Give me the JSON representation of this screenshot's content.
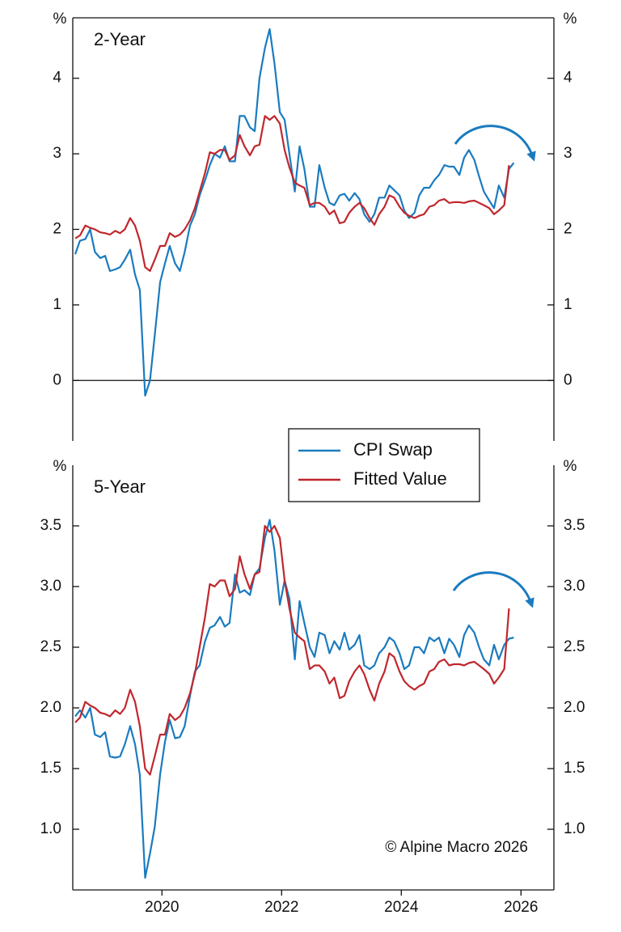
{
  "chart_data": [
    {
      "type": "line",
      "title": "2-Year",
      "ylabel": "%",
      "y2label": "%",
      "x": [
        2018.55,
        2018.63,
        2018.72,
        2018.8,
        2018.88,
        2018.97,
        2019.05,
        2019.13,
        2019.22,
        2019.3,
        2019.38,
        2019.47,
        2019.55,
        2019.63,
        2019.72,
        2019.8,
        2019.88,
        2019.97,
        2020.05,
        2020.13,
        2020.22,
        2020.3,
        2020.38,
        2020.47,
        2020.55,
        2020.63,
        2020.72,
        2020.8,
        2020.88,
        2020.97,
        2021.05,
        2021.13,
        2021.22,
        2021.3,
        2021.38,
        2021.47,
        2021.55,
        2021.63,
        2021.72,
        2021.8,
        2021.88,
        2021.97,
        2022.05,
        2022.13,
        2022.22,
        2022.3,
        2022.38,
        2022.47,
        2022.55,
        2022.63,
        2022.72,
        2022.8,
        2022.88,
        2022.97,
        2023.05,
        2023.13,
        2023.22,
        2023.3,
        2023.38,
        2023.47,
        2023.55,
        2023.63,
        2023.72,
        2023.8,
        2023.88,
        2023.97,
        2024.05,
        2024.13,
        2024.22,
        2024.3,
        2024.38,
        2024.47,
        2024.55,
        2024.63,
        2024.72,
        2024.8,
        2024.88,
        2024.97,
        2025.05,
        2025.13,
        2025.22,
        2025.3,
        2025.38,
        2025.47,
        2025.55,
        2025.63,
        2025.72,
        2025.8,
        2025.88
      ],
      "series": [
        {
          "name": "CPI Swap",
          "color": "#1a7bbf",
          "values": [
            1.67,
            1.85,
            1.87,
            2.0,
            1.7,
            1.62,
            1.65,
            1.45,
            1.47,
            1.5,
            1.6,
            1.73,
            1.4,
            1.2,
            -0.2,
            0.0,
            0.6,
            1.3,
            1.55,
            1.78,
            1.55,
            1.45,
            1.7,
            2.05,
            2.2,
            2.45,
            2.65,
            2.85,
            3.0,
            2.95,
            3.1,
            2.9,
            2.9,
            3.5,
            3.5,
            3.35,
            3.3,
            4.0,
            4.4,
            4.65,
            4.2,
            3.55,
            3.45,
            3.0,
            2.5,
            3.1,
            2.8,
            2.3,
            2.3,
            2.85,
            2.55,
            2.35,
            2.32,
            2.45,
            2.47,
            2.38,
            2.48,
            2.4,
            2.2,
            2.1,
            2.2,
            2.42,
            2.42,
            2.58,
            2.52,
            2.45,
            2.25,
            2.15,
            2.22,
            2.45,
            2.55,
            2.55,
            2.65,
            2.72,
            2.85,
            2.83,
            2.83,
            2.72,
            2.95,
            3.05,
            2.92,
            2.7,
            2.5,
            2.38,
            2.28,
            2.58,
            2.42,
            2.8,
            2.88
          ]
        },
        {
          "name": "Fitted Value",
          "color": "#c0272d",
          "values": [
            1.88,
            1.92,
            2.05,
            2.02,
            2.0,
            1.96,
            1.95,
            1.93,
            1.98,
            1.95,
            2.0,
            2.15,
            2.05,
            1.85,
            1.5,
            1.45,
            1.6,
            1.78,
            1.78,
            1.95,
            1.9,
            1.93,
            2.0,
            2.12,
            2.28,
            2.5,
            2.75,
            3.02,
            3.0,
            3.05,
            3.05,
            2.92,
            2.98,
            3.25,
            3.1,
            2.98,
            3.1,
            3.12,
            3.5,
            3.45,
            3.5,
            3.4,
            3.05,
            2.82,
            2.62,
            2.58,
            2.55,
            2.32,
            2.35,
            2.35,
            2.3,
            2.2,
            2.25,
            2.08,
            2.1,
            2.22,
            2.3,
            2.35,
            2.28,
            2.15,
            2.06,
            2.2,
            2.3,
            2.45,
            2.42,
            2.3,
            2.22,
            2.18,
            2.15,
            2.18,
            2.2,
            2.3,
            2.32,
            2.38,
            2.4,
            2.35,
            2.36,
            2.36,
            2.35,
            2.37,
            2.38,
            2.35,
            2.32,
            2.28,
            2.2,
            2.25,
            2.32,
            2.85,
            null
          ]
        }
      ],
      "xlim": [
        2018.51,
        2026.55
      ],
      "ylim": [
        -0.8,
        4.8
      ],
      "yticks": [
        0,
        1,
        2,
        3,
        4
      ],
      "y2lim": [
        -0.8,
        4.8
      ],
      "y2ticks": [
        0,
        1,
        2,
        3,
        4
      ],
      "zero_line": true,
      "legend": true
    },
    {
      "type": "line",
      "title": "5-Year",
      "ylabel": "%",
      "y2label": "%",
      "annotation": "© Alpine Macro 2026",
      "x": [
        2018.55,
        2018.63,
        2018.72,
        2018.8,
        2018.88,
        2018.97,
        2019.05,
        2019.13,
        2019.22,
        2019.3,
        2019.38,
        2019.47,
        2019.55,
        2019.63,
        2019.72,
        2019.8,
        2019.88,
        2019.97,
        2020.05,
        2020.13,
        2020.22,
        2020.3,
        2020.38,
        2020.47,
        2020.55,
        2020.63,
        2020.72,
        2020.8,
        2020.88,
        2020.97,
        2021.05,
        2021.13,
        2021.22,
        2021.3,
        2021.38,
        2021.47,
        2021.55,
        2021.63,
        2021.72,
        2021.8,
        2021.88,
        2021.97,
        2022.05,
        2022.13,
        2022.22,
        2022.3,
        2022.38,
        2022.47,
        2022.55,
        2022.63,
        2022.72,
        2022.8,
        2022.88,
        2022.97,
        2023.05,
        2023.13,
        2023.22,
        2023.3,
        2023.38,
        2023.47,
        2023.55,
        2023.63,
        2023.72,
        2023.8,
        2023.88,
        2023.97,
        2024.05,
        2024.13,
        2024.22,
        2024.3,
        2024.38,
        2024.47,
        2024.55,
        2024.63,
        2024.72,
        2024.8,
        2024.88,
        2024.97,
        2025.05,
        2025.13,
        2025.22,
        2025.3,
        2025.38,
        2025.47,
        2025.55,
        2025.63,
        2025.72,
        2025.8,
        2025.88
      ],
      "series": [
        {
          "color": "#1a7bbf",
          "values": [
            1.93,
            1.98,
            1.92,
            2.0,
            1.78,
            1.76,
            1.8,
            1.6,
            1.59,
            1.6,
            1.7,
            1.85,
            1.7,
            1.45,
            0.6,
            0.8,
            1.02,
            1.45,
            1.72,
            1.9,
            1.75,
            1.76,
            1.85,
            2.1,
            2.3,
            2.35,
            2.55,
            2.66,
            2.68,
            2.75,
            2.67,
            2.7,
            3.1,
            2.95,
            2.97,
            2.93,
            3.1,
            3.15,
            3.4,
            3.55,
            3.3,
            2.85,
            3.05,
            2.9,
            2.4,
            2.88,
            2.7,
            2.5,
            2.42,
            2.62,
            2.6,
            2.45,
            2.55,
            2.48,
            2.62,
            2.48,
            2.52,
            2.6,
            2.35,
            2.32,
            2.35,
            2.45,
            2.5,
            2.58,
            2.55,
            2.45,
            2.32,
            2.35,
            2.5,
            2.5,
            2.45,
            2.58,
            2.55,
            2.58,
            2.45,
            2.57,
            2.52,
            2.42,
            2.6,
            2.68,
            2.62,
            2.5,
            2.4,
            2.35,
            2.52,
            2.4,
            2.52,
            2.57,
            2.58
          ]
        },
        {
          "color": "#c0272d",
          "values": [
            1.88,
            1.92,
            2.05,
            2.02,
            2.0,
            1.96,
            1.95,
            1.93,
            1.98,
            1.95,
            2.0,
            2.15,
            2.05,
            1.85,
            1.5,
            1.45,
            1.6,
            1.78,
            1.78,
            1.95,
            1.9,
            1.93,
            2.0,
            2.12,
            2.28,
            2.5,
            2.75,
            3.02,
            3.0,
            3.05,
            3.05,
            2.92,
            2.98,
            3.25,
            3.1,
            2.98,
            3.1,
            3.12,
            3.5,
            3.45,
            3.5,
            3.4,
            3.05,
            2.82,
            2.62,
            2.58,
            2.55,
            2.32,
            2.35,
            2.35,
            2.3,
            2.2,
            2.25,
            2.08,
            2.1,
            2.22,
            2.3,
            2.35,
            2.28,
            2.15,
            2.06,
            2.2,
            2.3,
            2.45,
            2.42,
            2.3,
            2.22,
            2.18,
            2.15,
            2.18,
            2.2,
            2.3,
            2.32,
            2.38,
            2.4,
            2.35,
            2.36,
            2.36,
            2.35,
            2.37,
            2.38,
            2.35,
            2.32,
            2.28,
            2.2,
            2.25,
            2.32,
            2.82,
            null
          ]
        }
      ],
      "xlim": [
        2018.51,
        2026.55
      ],
      "xticks": [
        2020,
        2022,
        2024,
        2026
      ],
      "ylim": [
        0.5,
        4.0
      ],
      "yticks": [
        {
          "value": 1,
          "label": "1.0"
        },
        1.5,
        {
          "value": 2,
          "label": "2.0"
        },
        2.5,
        {
          "value": 3,
          "label": "3.0"
        },
        3.5
      ],
      "y2lim": [
        0.5,
        4.0
      ],
      "y2ticks": [
        {
          "value": 1,
          "label": "1.0"
        },
        1.5,
        {
          "value": 2,
          "label": "2.0"
        },
        2.5,
        {
          "value": 3,
          "label": "3.0"
        },
        3.5
      ]
    }
  ]
}
